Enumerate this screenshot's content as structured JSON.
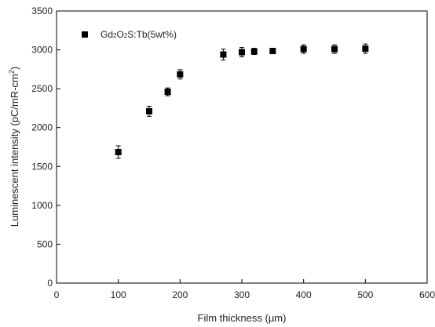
{
  "chart_data": {
    "type": "scatter",
    "title": "",
    "xlabel": "Film thickness (µm)",
    "ylabel": "Luminescent intensity (pC/mR-cm",
    "ylabel_superscript": "2",
    "ylabel_suffix": ")",
    "xlim": [
      0,
      600
    ],
    "ylim": [
      0,
      3500
    ],
    "x_ticks": [
      "0",
      "100",
      "200",
      "300",
      "400",
      "500",
      "600"
    ],
    "y_ticks": [
      "0",
      "500",
      "1000",
      "1500",
      "2000",
      "2500",
      "3000",
      "3500"
    ],
    "grid": false,
    "legend_position": "top-left",
    "series": [
      {
        "name": "Gd2O2S:Tb(5wt%)",
        "legend_parts": [
          {
            "t": "Gd",
            "sub": false
          },
          {
            "t": "2",
            "sub": true
          },
          {
            "t": "O",
            "sub": false
          },
          {
            "t": "2",
            "sub": true
          },
          {
            "t": "S:Tb(5wt%)",
            "sub": false
          }
        ],
        "marker": "square",
        "color": "#000000",
        "points": [
          {
            "x": 100,
            "y": 1685,
            "err": 80
          },
          {
            "x": 150,
            "y": 2210,
            "err": 65
          },
          {
            "x": 180,
            "y": 2460,
            "err": 50
          },
          {
            "x": 200,
            "y": 2685,
            "err": 60
          },
          {
            "x": 270,
            "y": 2940,
            "err": 70
          },
          {
            "x": 300,
            "y": 2970,
            "err": 60
          },
          {
            "x": 320,
            "y": 2980,
            "err": 40
          },
          {
            "x": 350,
            "y": 2985,
            "err": 35
          },
          {
            "x": 400,
            "y": 3010,
            "err": 55
          },
          {
            "x": 450,
            "y": 3010,
            "err": 55
          },
          {
            "x": 500,
            "y": 3015,
            "err": 60
          }
        ]
      }
    ]
  }
}
